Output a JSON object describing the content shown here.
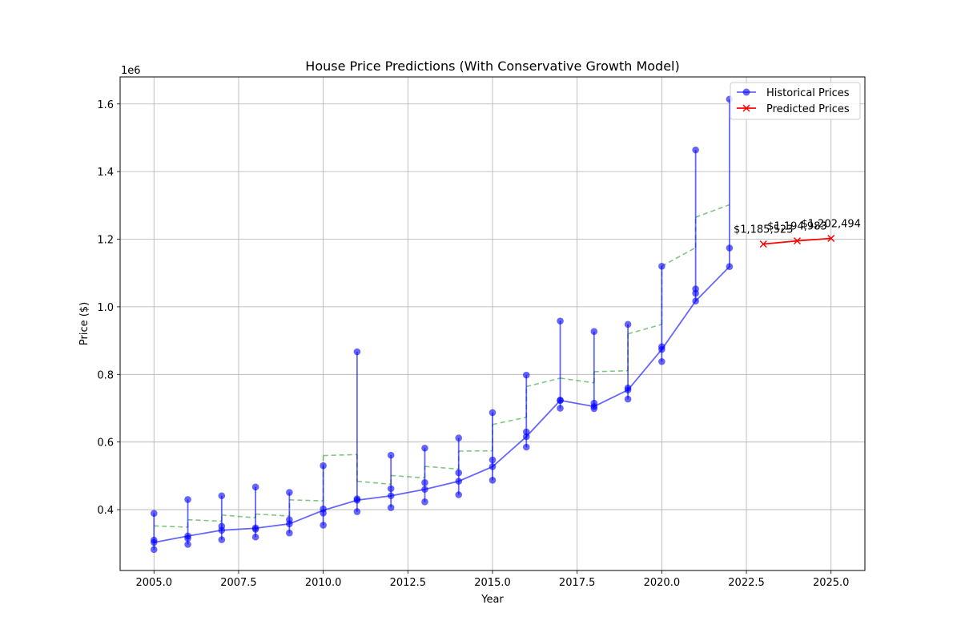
{
  "chart_data": {
    "type": "line",
    "title": "House Price Predictions (With Conservative Growth Model)",
    "xlabel": "Year",
    "ylabel": "Price ($)",
    "y_scale_label": "1e6",
    "xlim": [
      2004.0,
      2026.0
    ],
    "ylim": [
      0.22,
      1.68
    ],
    "x_ticks": [
      2005.0,
      2007.5,
      2010.0,
      2012.5,
      2015.0,
      2017.5,
      2020.0,
      2022.5,
      2025.0
    ],
    "x_tick_labels": [
      "2005.0",
      "2007.5",
      "2010.0",
      "2012.5",
      "2015.0",
      "2017.5",
      "2020.0",
      "2022.5",
      "2025.0"
    ],
    "y_ticks": [
      0.4,
      0.6,
      0.8,
      1.0,
      1.2,
      1.4,
      1.6
    ],
    "y_tick_labels": [
      "0.4",
      "0.6",
      "0.8",
      "1.0",
      "1.2",
      "1.4",
      "1.6"
    ],
    "grid": true,
    "legend_position": "upper right",
    "series": [
      {
        "name": "Historical Prices",
        "color": "#0000ff",
        "marker": "circle",
        "years": [
          2005,
          2006,
          2007,
          2008,
          2009,
          2010,
          2011,
          2012,
          2013,
          2014,
          2015,
          2016,
          2017,
          2018,
          2019,
          2020,
          2021,
          2022
        ],
        "values": [
          0.303,
          0.322,
          0.339,
          0.345,
          0.358,
          0.398,
          0.428,
          0.441,
          0.46,
          0.484,
          0.527,
          0.616,
          0.723,
          0.705,
          0.754,
          0.874,
          1.017,
          1.119
        ],
        "points_per_year": [
          [
            0.389,
            0.31,
            0.303,
            0.282
          ],
          [
            0.43,
            0.322,
            0.315,
            0.297
          ],
          [
            0.441,
            0.351,
            0.339,
            0.311
          ],
          [
            0.467,
            0.346,
            0.342,
            0.319
          ],
          [
            0.451,
            0.37,
            0.358,
            0.331
          ],
          [
            0.53,
            0.402,
            0.39,
            0.354
          ],
          [
            0.867,
            0.432,
            0.428,
            0.394
          ],
          [
            0.561,
            0.462,
            0.441,
            0.406
          ],
          [
            0.582,
            0.48,
            0.46,
            0.423
          ],
          [
            0.612,
            0.509,
            0.484,
            0.444
          ],
          [
            0.687,
            0.547,
            0.527,
            0.487
          ],
          [
            0.798,
            0.63,
            0.616,
            0.585
          ],
          [
            0.958,
            0.724,
            0.723,
            0.7
          ],
          [
            0.927,
            0.715,
            0.705,
            0.699
          ],
          [
            0.948,
            0.76,
            0.754,
            0.727
          ],
          [
            1.12,
            0.882,
            0.874,
            0.838
          ],
          [
            1.464,
            1.053,
            1.04,
            1.017
          ],
          [
            1.614,
            1.174,
            1.119
          ]
        ]
      },
      {
        "name": "Predicted Prices",
        "color": "#ff0000",
        "marker": "x",
        "years": [
          2023,
          2024,
          2025
        ],
        "values": [
          1.185523,
          1.194983,
          1.202494
        ],
        "labels": [
          "$1,185,523",
          "$1,194,983",
          "$1,202,494"
        ]
      },
      {
        "color": "#2ca02c",
        "dashed": true,
        "pairs": [
          [
            0.352,
            0.348
          ],
          [
            0.37,
            0.366
          ],
          [
            0.384,
            0.376
          ],
          [
            0.387,
            0.381
          ],
          [
            0.429,
            0.426
          ],
          [
            0.56,
            0.563
          ],
          [
            0.484,
            0.475
          ],
          [
            0.501,
            0.494
          ],
          [
            0.528,
            0.52
          ],
          [
            0.573,
            0.574
          ],
          [
            0.652,
            0.673
          ],
          [
            0.764,
            0.789
          ],
          [
            0.789,
            0.775
          ],
          [
            0.808,
            0.811
          ],
          [
            0.92,
            0.948
          ],
          [
            1.12,
            1.175
          ],
          [
            1.265,
            1.302
          ]
        ]
      }
    ]
  }
}
